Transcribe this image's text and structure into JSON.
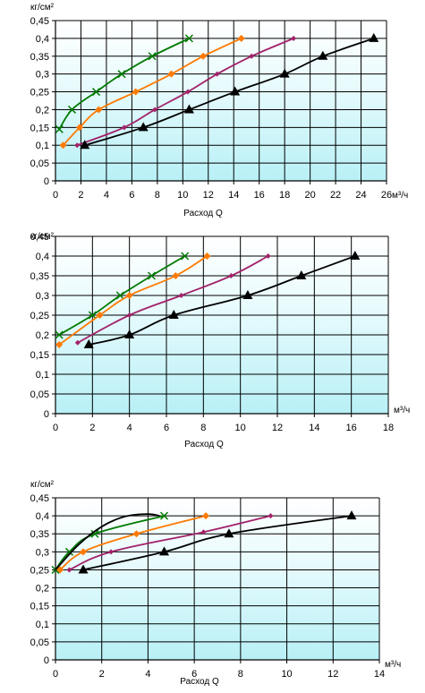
{
  "chart_data": [
    {
      "type": "line",
      "ylabel": "кг/см²",
      "x_unit": "м³/ч",
      "xlabel": "Расход Q",
      "xlim": [
        0,
        26
      ],
      "ylim": [
        0,
        0.45
      ],
      "x_ticks": [
        0,
        2,
        4,
        6,
        8,
        10,
        12,
        14,
        16,
        18,
        20,
        22,
        24,
        26
      ],
      "y_ticks": [
        0,
        0.05,
        0.1,
        0.15,
        0.2,
        0.25,
        0.3,
        0.35,
        0.4,
        0.45
      ],
      "x_tick_labels": [
        "0",
        "2",
        "4",
        "6",
        "8",
        "10",
        "12",
        "14",
        "16",
        "18",
        "20",
        "22",
        "24",
        "26"
      ],
      "y_tick_labels": [
        "0",
        "0,05",
        "0,1",
        "0,15",
        "0,2",
        "0,25",
        "0,3",
        "0,35",
        "0,4",
        "0,45"
      ],
      "grid": true,
      "plot_background": "gradient cyan-to-white",
      "series": [
        {
          "color": "#007a00",
          "marker": "x",
          "x": [
            0.3,
            1.3,
            3.2,
            5.2,
            7.6,
            10.5
          ],
          "y": [
            0.145,
            0.2,
            0.25,
            0.3,
            0.35,
            0.4
          ]
        },
        {
          "color": "#ff7a00",
          "marker": "diamond",
          "x": [
            0.6,
            1.9,
            3.4,
            6.3,
            9.1,
            11.6,
            14.6
          ],
          "y": [
            0.1,
            0.15,
            0.2,
            0.25,
            0.3,
            0.35,
            0.4
          ]
        },
        {
          "color": "#a2226a",
          "marker": "diamond-small",
          "x": [
            1.7,
            5.4,
            7.8,
            10.4,
            12.7,
            15.4,
            18.7
          ],
          "y": [
            0.1,
            0.15,
            0.2,
            0.25,
            0.3,
            0.35,
            0.4
          ]
        },
        {
          "color": "#000000",
          "marker": "triangle",
          "x": [
            2.3,
            6.9,
            10.5,
            14.1,
            18.0,
            21.0,
            25.0
          ],
          "y": [
            0.1,
            0.15,
            0.2,
            0.25,
            0.3,
            0.35,
            0.4
          ]
        }
      ]
    },
    {
      "type": "line",
      "ylabel": "кг/см²",
      "x_unit": "м³/ч",
      "xlabel": "Расход Q",
      "xlim": [
        0,
        18
      ],
      "ylim": [
        0,
        0.45
      ],
      "x_ticks": [
        0,
        2,
        4,
        6,
        8,
        10,
        12,
        14,
        16,
        18
      ],
      "y_ticks": [
        0,
        0.05,
        0.1,
        0.15,
        0.2,
        0.25,
        0.3,
        0.35,
        0.4,
        0.45
      ],
      "x_tick_labels": [
        "0",
        "2",
        "4",
        "6",
        "8",
        "10",
        "12",
        "14",
        "16",
        "18"
      ],
      "y_tick_labels": [
        "0",
        "0,05",
        "0,1",
        "0,15",
        "0,2",
        "0,25",
        "0,3",
        "0,35",
        "0,4",
        "0,45"
      ],
      "grid": true,
      "plot_background": "gradient cyan-to-white",
      "series": [
        {
          "color": "#007a00",
          "marker": "x",
          "x": [
            0.2,
            2.0,
            3.5,
            5.2,
            7.0
          ],
          "y": [
            0.2,
            0.25,
            0.3,
            0.35,
            0.4
          ]
        },
        {
          "color": "#ff7a00",
          "marker": "diamond",
          "x": [
            0.2,
            2.4,
            4.0,
            6.5,
            8.2
          ],
          "y": [
            0.175,
            0.25,
            0.3,
            0.35,
            0.4
          ]
        },
        {
          "color": "#a2226a",
          "marker": "diamond-small",
          "x": [
            1.2,
            4.0,
            6.8,
            9.5,
            11.5
          ],
          "y": [
            0.18,
            0.25,
            0.3,
            0.35,
            0.4
          ]
        },
        {
          "color": "#000000",
          "marker": "triangle",
          "x": [
            1.8,
            4.0,
            6.4,
            10.4,
            13.3,
            16.2
          ],
          "y": [
            0.175,
            0.2,
            0.25,
            0.3,
            0.35,
            0.4
          ]
        }
      ]
    },
    {
      "type": "line",
      "ylabel": "кг/см²",
      "x_unit": "м³/ч",
      "xlabel": "Расход Q",
      "xlim": [
        0,
        14
      ],
      "ylim": [
        0,
        0.45
      ],
      "x_ticks": [
        0,
        2,
        4,
        6,
        8,
        10,
        12,
        14
      ],
      "y_ticks": [
        0,
        0.05,
        0.1,
        0.15,
        0.2,
        0.25,
        0.3,
        0.35,
        0.4,
        0.45
      ],
      "x_tick_labels": [
        "0",
        "2",
        "4",
        "6",
        "8",
        "10",
        "12",
        "14"
      ],
      "y_tick_labels": [
        "0",
        "0,05",
        "0,1",
        "0,15",
        "0,2",
        "0,25",
        "0,3",
        "0,35",
        "0,4",
        "0,45"
      ],
      "grid": true,
      "plot_background": "gradient cyan-to-white",
      "series": [
        {
          "color": "#007a00",
          "marker": "x",
          "x": [
            0.0,
            0.6,
            1.7,
            4.7
          ],
          "y": [
            0.25,
            0.3,
            0.35,
            0.4
          ]
        },
        {
          "color": "#000000",
          "marker": "none",
          "x": [
            0.0,
            1.0,
            2.0,
            3.0,
            4.0,
            4.5
          ],
          "y": [
            0.25,
            0.32,
            0.37,
            0.398,
            0.405,
            0.4
          ]
        },
        {
          "color": "#ff7a00",
          "marker": "diamond",
          "x": [
            0.2,
            1.2,
            3.5,
            6.5
          ],
          "y": [
            0.25,
            0.3,
            0.35,
            0.4
          ]
        },
        {
          "color": "#a2226a",
          "marker": "diamond-small",
          "x": [
            0.6,
            2.4,
            6.4,
            9.3
          ],
          "y": [
            0.25,
            0.3,
            0.355,
            0.4
          ]
        },
        {
          "color": "#000000",
          "marker": "triangle",
          "x": [
            1.2,
            4.7,
            7.5,
            12.8
          ],
          "y": [
            0.25,
            0.3,
            0.35,
            0.4
          ]
        }
      ]
    }
  ]
}
